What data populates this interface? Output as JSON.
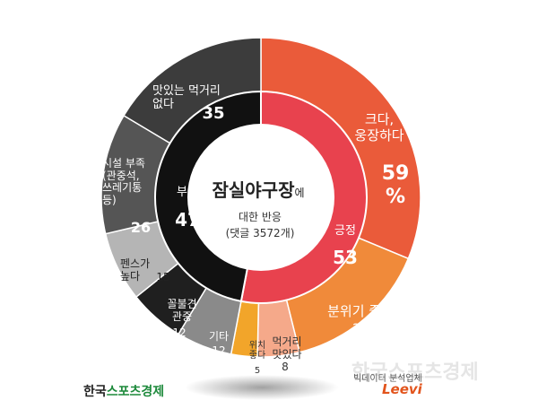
{
  "chart_data": {
    "type": "pie",
    "title": "잠실야구장",
    "title_suffix": "에",
    "subtitle": "대한 반응",
    "subtitle2": "(댓글 3572개)",
    "inner_ring": [
      {
        "name": "긍정",
        "value": 53,
        "color": "#e8424e"
      },
      {
        "name": "부정",
        "value": 47,
        "color": "#111111"
      }
    ],
    "outer_ring": [
      {
        "name": "크다,\n웅장하다",
        "value": "59\n%",
        "color": "#ea5b3a"
      },
      {
        "name": "분위기 좋다",
        "value": 28,
        "color": "#f08a3a"
      },
      {
        "name": "먹거리\n맛있다",
        "value": 8,
        "color": "#f5a98a"
      },
      {
        "name": "위치\n좋다",
        "value": 5,
        "color": "#f2a52a"
      },
      {
        "name": "기타",
        "value": 12,
        "color": "#8a8a8a"
      },
      {
        "name": "꼴불견\n관중",
        "value": 12,
        "color": "#1f1f1f"
      },
      {
        "name": "펜스가\n높다",
        "value": 15,
        "color": "#b5b5b5"
      },
      {
        "name": "시설 부족\n(관중석,\n쓰레기통\n등)",
        "value": 26,
        "color": "#555555"
      },
      {
        "name": "맛있는 먹거리\n없다",
        "value": 35,
        "color": "#3c3c3c"
      }
    ]
  },
  "branding": {
    "left_logo_prefix": "한국",
    "left_logo_main": "스포츠경제",
    "right_caption": "빅데이터 분석업체",
    "right_logo": "Leevi",
    "watermark": "한국스포츠경제"
  }
}
